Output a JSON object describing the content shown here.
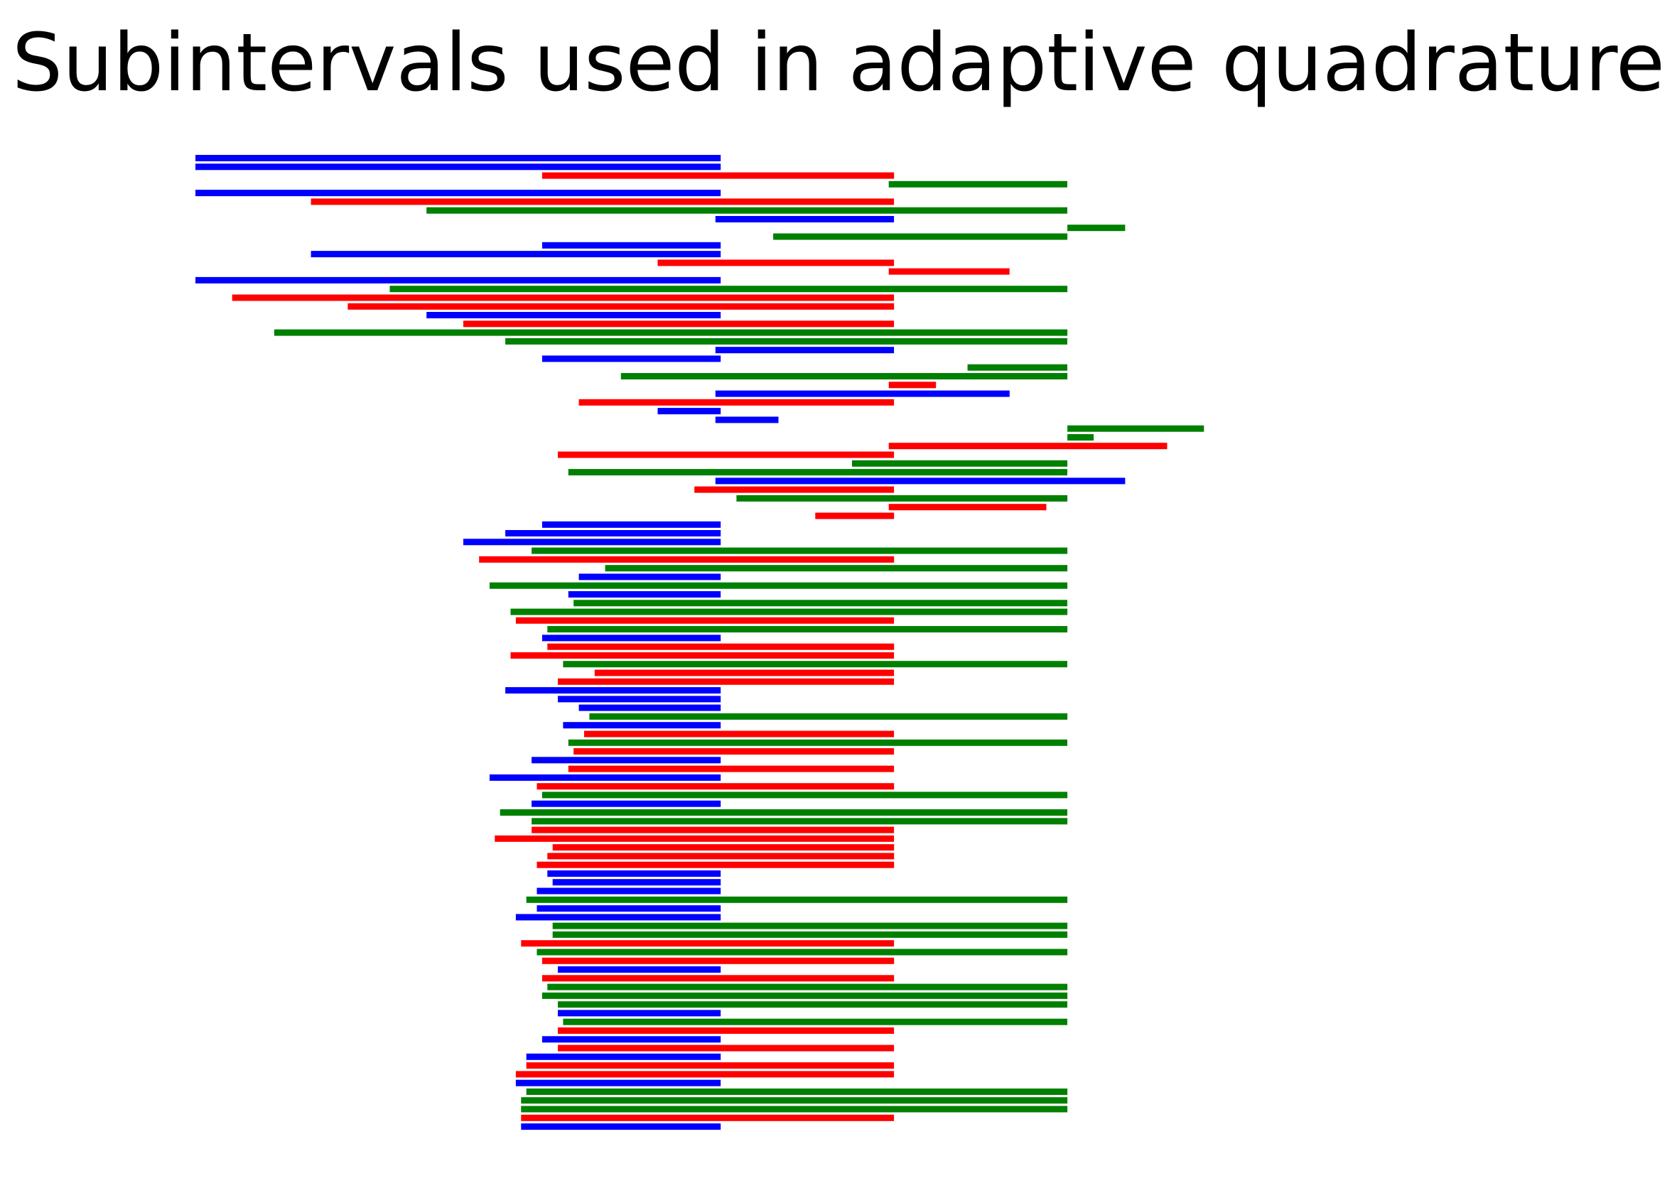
{
  "chart_data": {
    "type": "bar",
    "orientation": "horizontal-intervals",
    "title": "Subintervals used in adaptive quadrature",
    "xlabel": "",
    "ylabel": "",
    "xlim": [
      -1.0,
      1.5
    ],
    "axes_visible": false,
    "grid": false,
    "legend": "none",
    "colors": {
      "blue": "#0000ff",
      "red": "#ff0000",
      "green": "#008000"
    },
    "intervals": [
      {
        "a": -1.0,
        "b": 0.0,
        "color": "blue"
      },
      {
        "a": -1.0,
        "b": 0.0,
        "color": "blue"
      },
      {
        "a": -0.34,
        "b": 0.33,
        "color": "red"
      },
      {
        "a": 0.32,
        "b": 0.66,
        "color": "green"
      },
      {
        "a": -1.0,
        "b": 0.0,
        "color": "blue"
      },
      {
        "a": -0.78,
        "b": 0.33,
        "color": "red"
      },
      {
        "a": -0.56,
        "b": 0.66,
        "color": "green"
      },
      {
        "a": -0.01,
        "b": 0.33,
        "color": "blue"
      },
      {
        "a": 0.66,
        "b": 0.77,
        "color": "green"
      },
      {
        "a": 0.1,
        "b": 0.66,
        "color": "green"
      },
      {
        "a": -0.34,
        "b": 0.0,
        "color": "blue"
      },
      {
        "a": -0.78,
        "b": 0.0,
        "color": "blue"
      },
      {
        "a": -0.12,
        "b": 0.33,
        "color": "red"
      },
      {
        "a": 0.32,
        "b": 0.55,
        "color": "red"
      },
      {
        "a": -1.0,
        "b": 0.0,
        "color": "blue"
      },
      {
        "a": -0.63,
        "b": 0.66,
        "color": "green"
      },
      {
        "a": -0.93,
        "b": 0.33,
        "color": "red"
      },
      {
        "a": -0.71,
        "b": 0.33,
        "color": "red"
      },
      {
        "a": -0.56,
        "b": 0.0,
        "color": "blue"
      },
      {
        "a": -0.49,
        "b": 0.33,
        "color": "red"
      },
      {
        "a": -0.85,
        "b": 0.66,
        "color": "green"
      },
      {
        "a": -0.41,
        "b": 0.66,
        "color": "green"
      },
      {
        "a": -0.01,
        "b": 0.33,
        "color": "blue"
      },
      {
        "a": -0.34,
        "b": 0.0,
        "color": "blue"
      },
      {
        "a": 0.47,
        "b": 0.66,
        "color": "green"
      },
      {
        "a": -0.19,
        "b": 0.66,
        "color": "green"
      },
      {
        "a": 0.32,
        "b": 0.41,
        "color": "red"
      },
      {
        "a": -0.01,
        "b": 0.55,
        "color": "blue"
      },
      {
        "a": -0.27,
        "b": 0.33,
        "color": "red"
      },
      {
        "a": -0.12,
        "b": 0.0,
        "color": "blue"
      },
      {
        "a": -0.01,
        "b": 0.11,
        "color": "blue"
      },
      {
        "a": 0.66,
        "b": 0.92,
        "color": "green"
      },
      {
        "a": 0.66,
        "b": 0.71,
        "color": "green"
      },
      {
        "a": 0.32,
        "b": 0.85,
        "color": "red"
      },
      {
        "a": -0.31,
        "b": 0.33,
        "color": "red"
      },
      {
        "a": 0.25,
        "b": 0.66,
        "color": "green"
      },
      {
        "a": -0.29,
        "b": 0.66,
        "color": "green"
      },
      {
        "a": -0.01,
        "b": 0.77,
        "color": "blue"
      },
      {
        "a": -0.05,
        "b": 0.33,
        "color": "red"
      },
      {
        "a": 0.03,
        "b": 0.66,
        "color": "green"
      },
      {
        "a": 0.32,
        "b": 0.62,
        "color": "red"
      },
      {
        "a": 0.18,
        "b": 0.33,
        "color": "red"
      },
      {
        "a": -0.34,
        "b": 0.0,
        "color": "blue"
      },
      {
        "a": -0.41,
        "b": 0.0,
        "color": "blue"
      },
      {
        "a": -0.49,
        "b": 0.0,
        "color": "blue"
      },
      {
        "a": -0.36,
        "b": 0.66,
        "color": "green"
      },
      {
        "a": -0.46,
        "b": 0.33,
        "color": "red"
      },
      {
        "a": -0.22,
        "b": 0.66,
        "color": "green"
      },
      {
        "a": -0.27,
        "b": 0.0,
        "color": "blue"
      },
      {
        "a": -0.44,
        "b": 0.66,
        "color": "green"
      },
      {
        "a": -0.29,
        "b": 0.0,
        "color": "blue"
      },
      {
        "a": -0.28,
        "b": 0.66,
        "color": "green"
      },
      {
        "a": -0.4,
        "b": 0.66,
        "color": "green"
      },
      {
        "a": -0.39,
        "b": 0.33,
        "color": "red"
      },
      {
        "a": -0.33,
        "b": 0.66,
        "color": "green"
      },
      {
        "a": -0.34,
        "b": 0.0,
        "color": "blue"
      },
      {
        "a": -0.33,
        "b": 0.33,
        "color": "red"
      },
      {
        "a": -0.4,
        "b": 0.33,
        "color": "red"
      },
      {
        "a": -0.3,
        "b": 0.66,
        "color": "green"
      },
      {
        "a": -0.24,
        "b": 0.33,
        "color": "red"
      },
      {
        "a": -0.31,
        "b": 0.33,
        "color": "red"
      },
      {
        "a": -0.41,
        "b": 0.0,
        "color": "blue"
      },
      {
        "a": -0.31,
        "b": 0.0,
        "color": "blue"
      },
      {
        "a": -0.27,
        "b": 0.0,
        "color": "blue"
      },
      {
        "a": -0.25,
        "b": 0.66,
        "color": "green"
      },
      {
        "a": -0.3,
        "b": 0.0,
        "color": "blue"
      },
      {
        "a": -0.26,
        "b": 0.33,
        "color": "red"
      },
      {
        "a": -0.29,
        "b": 0.66,
        "color": "green"
      },
      {
        "a": -0.28,
        "b": 0.33,
        "color": "red"
      },
      {
        "a": -0.36,
        "b": 0.0,
        "color": "blue"
      },
      {
        "a": -0.29,
        "b": 0.33,
        "color": "red"
      },
      {
        "a": -0.44,
        "b": 0.0,
        "color": "blue"
      },
      {
        "a": -0.35,
        "b": 0.33,
        "color": "red"
      },
      {
        "a": -0.34,
        "b": 0.66,
        "color": "green"
      },
      {
        "a": -0.36,
        "b": 0.0,
        "color": "blue"
      },
      {
        "a": -0.42,
        "b": 0.66,
        "color": "green"
      },
      {
        "a": -0.36,
        "b": 0.66,
        "color": "green"
      },
      {
        "a": -0.36,
        "b": 0.33,
        "color": "red"
      },
      {
        "a": -0.43,
        "b": 0.33,
        "color": "red"
      },
      {
        "a": -0.32,
        "b": 0.33,
        "color": "red"
      },
      {
        "a": -0.33,
        "b": 0.33,
        "color": "red"
      },
      {
        "a": -0.35,
        "b": 0.33,
        "color": "red"
      },
      {
        "a": -0.33,
        "b": 0.0,
        "color": "blue"
      },
      {
        "a": -0.32,
        "b": 0.0,
        "color": "blue"
      },
      {
        "a": -0.35,
        "b": 0.0,
        "color": "blue"
      },
      {
        "a": -0.37,
        "b": 0.66,
        "color": "green"
      },
      {
        "a": -0.35,
        "b": 0.0,
        "color": "blue"
      },
      {
        "a": -0.39,
        "b": 0.0,
        "color": "blue"
      },
      {
        "a": -0.32,
        "b": 0.66,
        "color": "green"
      },
      {
        "a": -0.32,
        "b": 0.66,
        "color": "green"
      },
      {
        "a": -0.38,
        "b": 0.33,
        "color": "red"
      },
      {
        "a": -0.35,
        "b": 0.66,
        "color": "green"
      },
      {
        "a": -0.34,
        "b": 0.33,
        "color": "red"
      },
      {
        "a": -0.31,
        "b": 0.0,
        "color": "blue"
      },
      {
        "a": -0.34,
        "b": 0.33,
        "color": "red"
      },
      {
        "a": -0.33,
        "b": 0.66,
        "color": "green"
      },
      {
        "a": -0.34,
        "b": 0.66,
        "color": "green"
      },
      {
        "a": -0.31,
        "b": 0.66,
        "color": "green"
      },
      {
        "a": -0.31,
        "b": 0.0,
        "color": "blue"
      },
      {
        "a": -0.3,
        "b": 0.66,
        "color": "green"
      },
      {
        "a": -0.31,
        "b": 0.33,
        "color": "red"
      },
      {
        "a": -0.34,
        "b": 0.0,
        "color": "blue"
      },
      {
        "a": -0.31,
        "b": 0.33,
        "color": "red"
      },
      {
        "a": -0.37,
        "b": 0.0,
        "color": "blue"
      },
      {
        "a": -0.37,
        "b": 0.33,
        "color": "red"
      },
      {
        "a": -0.39,
        "b": 0.33,
        "color": "red"
      },
      {
        "a": -0.39,
        "b": 0.0,
        "color": "blue"
      },
      {
        "a": -0.37,
        "b": 0.66,
        "color": "green"
      },
      {
        "a": -0.38,
        "b": 0.66,
        "color": "green"
      },
      {
        "a": -0.38,
        "b": 0.66,
        "color": "green"
      },
      {
        "a": -0.38,
        "b": 0.33,
        "color": "red"
      },
      {
        "a": -0.38,
        "b": 0.0,
        "color": "blue"
      }
    ]
  }
}
